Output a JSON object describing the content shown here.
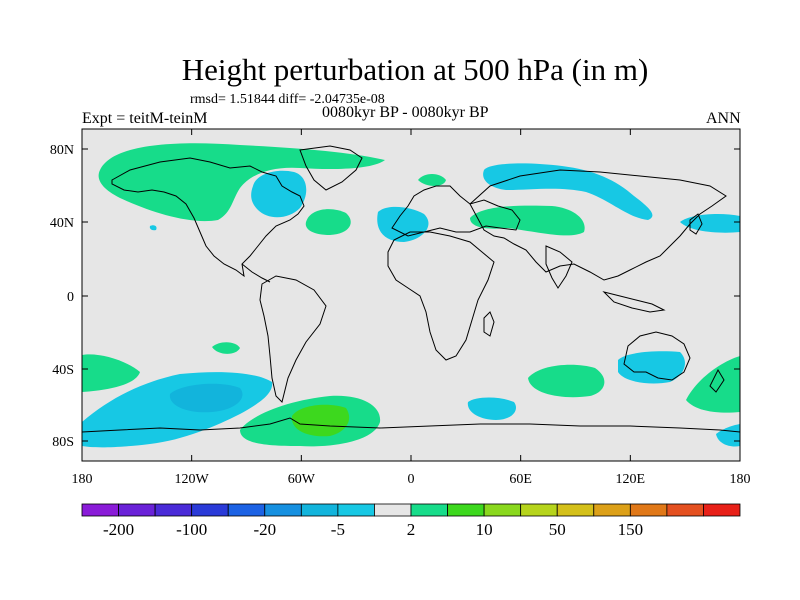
{
  "title": "Height perturbation at 500 hPa (in m)",
  "stats": "rmsd= 1.51844 diff= -2.04735e-08",
  "experiment": "Expt = teitM-teinM",
  "period": "0080kyr BP - 0080kyr BP",
  "season": "ANN",
  "lat_ticks": [
    "80N",
    "40N",
    "0",
    "40S",
    "80S"
  ],
  "lon_ticks": [
    "180",
    "120W",
    "60W",
    "0",
    "60E",
    "120E",
    "180"
  ],
  "colorbar": {
    "colors": [
      "#8a1bd8",
      "#6a22d8",
      "#4a2bd8",
      "#2a3ad8",
      "#1c62e4",
      "#1690e0",
      "#12b4dc",
      "#17c8e4",
      "#e6e6e6",
      "#17dc8a",
      "#3dd81e",
      "#8ad81e",
      "#b6d41c",
      "#d4c01a",
      "#dca018",
      "#e07818",
      "#e45020",
      "#e82018"
    ],
    "labels": [
      "-200",
      "-100",
      "-20",
      "-5",
      "2",
      "10",
      "50",
      "150"
    ]
  },
  "colors": {
    "background": "#e6e6e6",
    "positive": "#17dc8a",
    "positive_strong": "#3dd81e",
    "negative": "#17c8e4",
    "negative_strong": "#12b4dc"
  }
}
